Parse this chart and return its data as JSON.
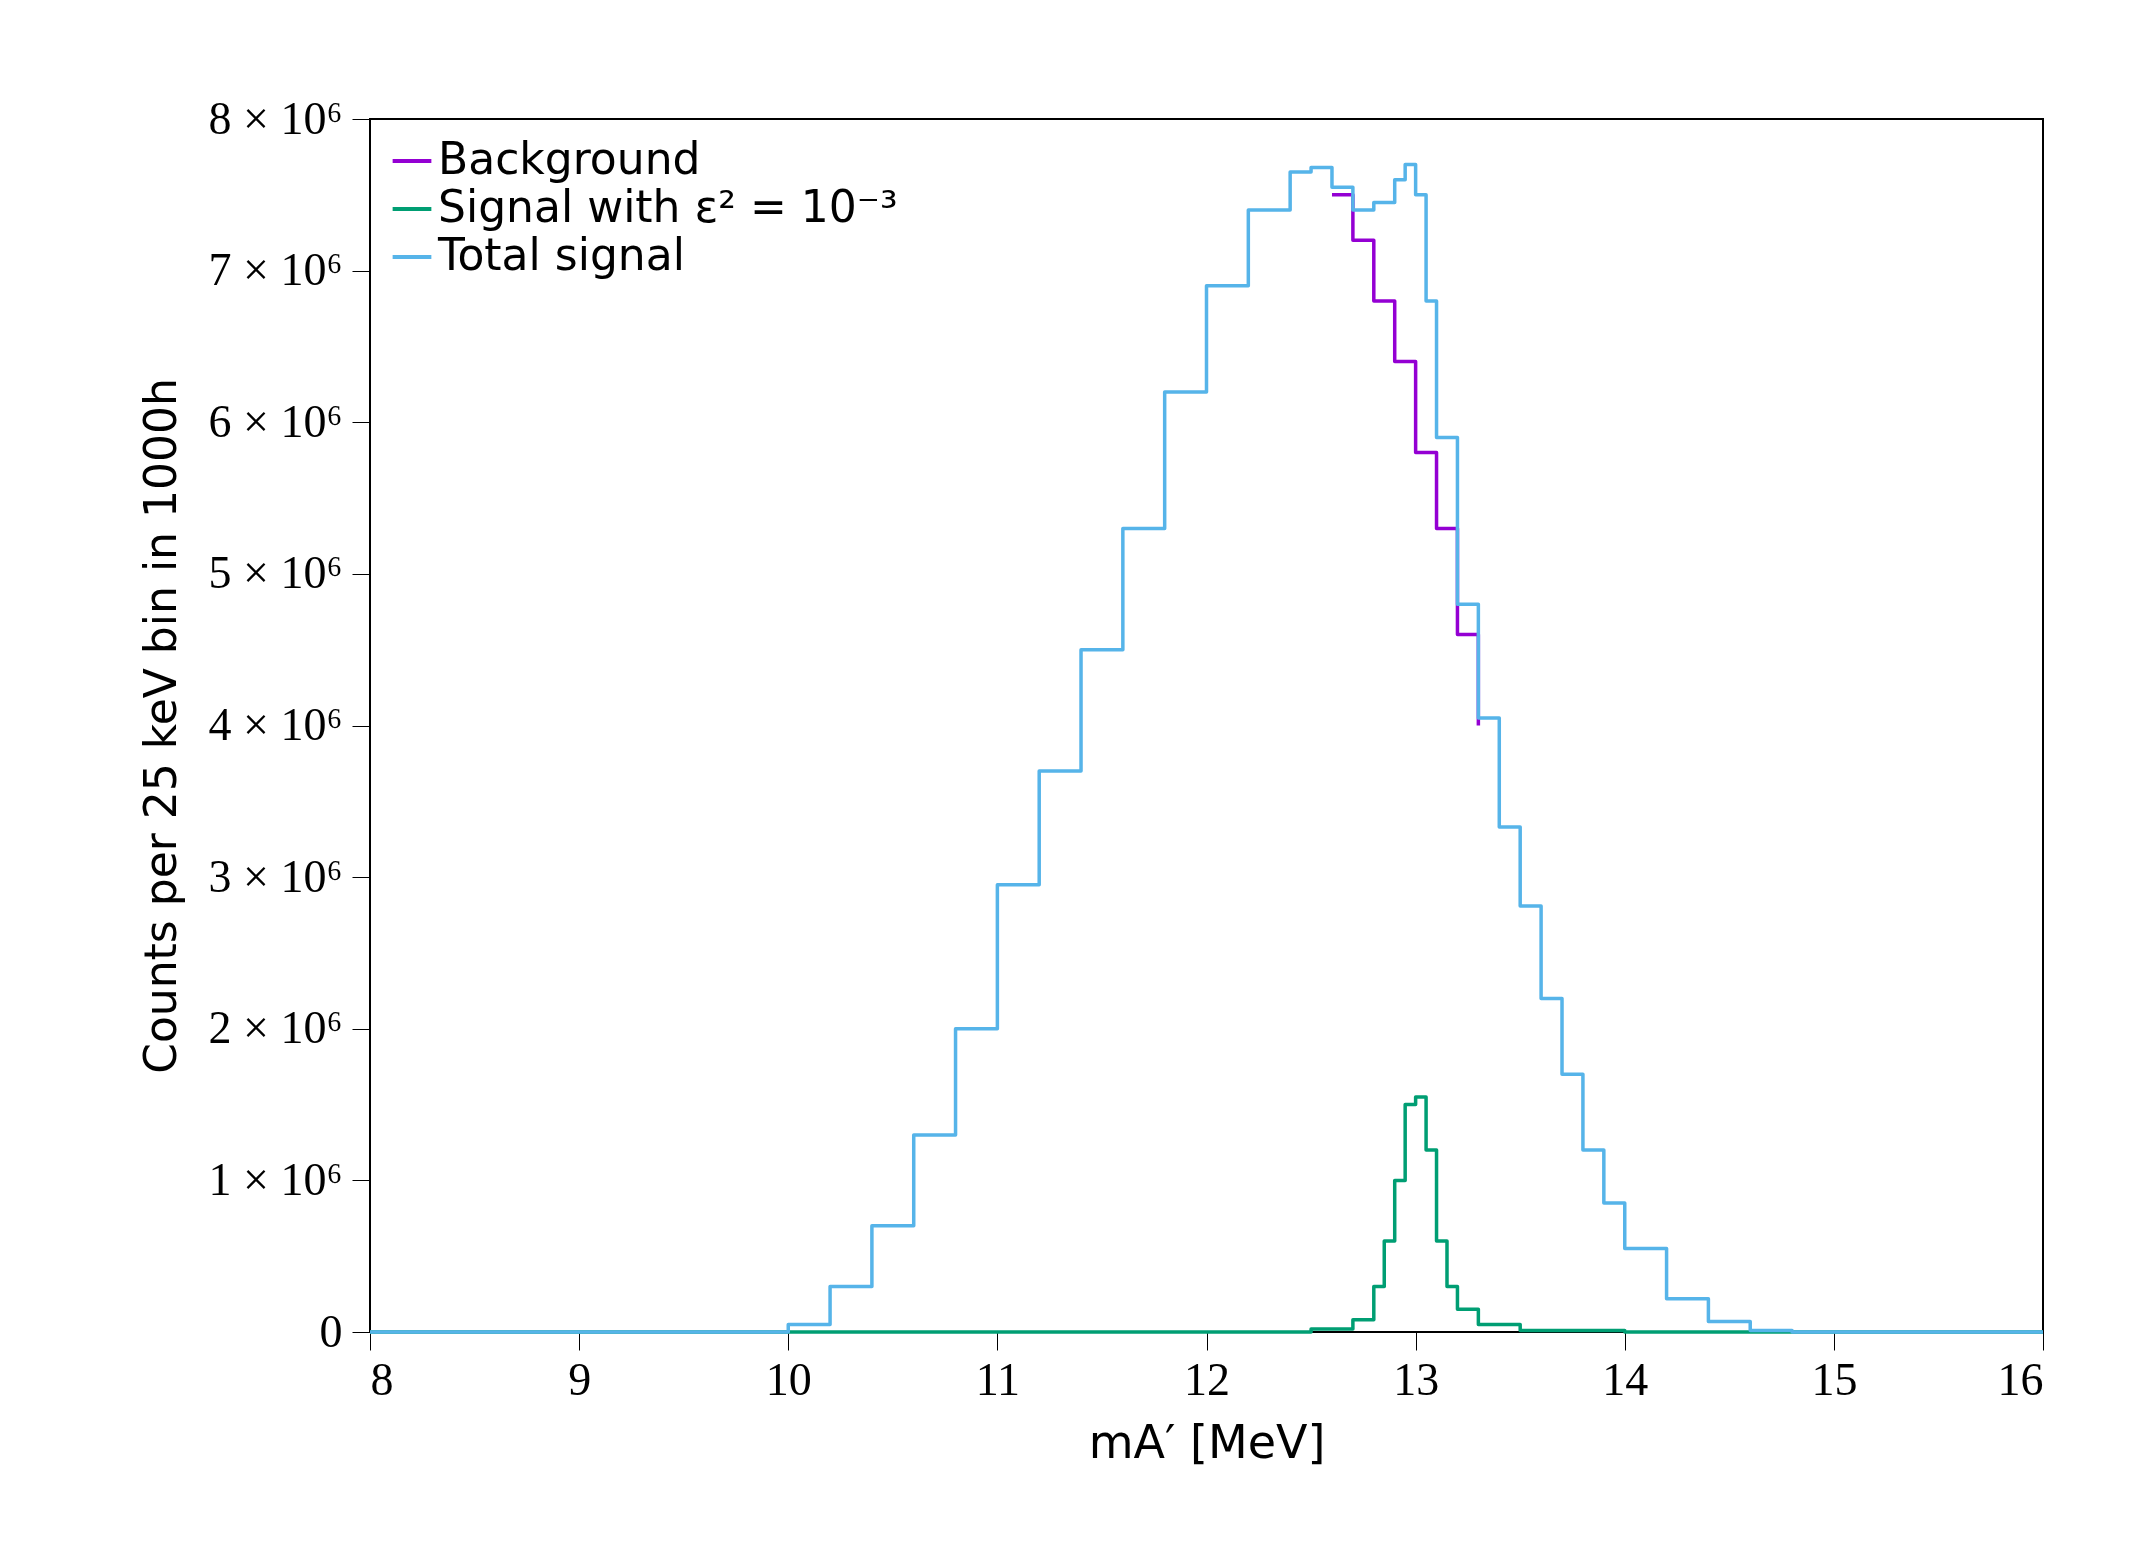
{
  "chart_data": {
    "type": "step",
    "xlabel": "mA′ [MeV]",
    "ylabel": "Counts per 25 keV bin in 1000h",
    "xlim": [
      8,
      16
    ],
    "xticks": [
      8,
      9,
      10,
      11,
      12,
      13,
      14,
      15,
      16
    ],
    "ylim": [
      0,
      8000000
    ],
    "yticks": [
      {
        "value": 0,
        "label": "0"
      },
      {
        "value": 1000000,
        "label": "1 × 10⁶"
      },
      {
        "value": 2000000,
        "label": "2 × 10⁶"
      },
      {
        "value": 3000000,
        "label": "3 × 10⁶"
      },
      {
        "value": 4000000,
        "label": "4 × 10⁶"
      },
      {
        "value": 5000000,
        "label": "5 × 10⁶"
      },
      {
        "value": 6000000,
        "label": "6 × 10⁶"
      },
      {
        "value": 7000000,
        "label": "7 × 10⁶"
      },
      {
        "value": 8000000,
        "label": "8 × 10⁶"
      }
    ],
    "grid": false,
    "legend": "top left",
    "line_style": "solid",
    "series": [
      {
        "name": "Background",
        "color": "#9400d3",
        "x": [
          12.6,
          12.7,
          12.8,
          12.9,
          13.0,
          13.1,
          13.2,
          13.3
        ],
        "values": [
          7500000,
          7200000,
          6800000,
          6400000,
          5800000,
          5300000,
          4600000,
          4000000
        ]
      },
      {
        "name": "Signal with ε² = 10⁻³",
        "color": "#009e73",
        "x": [
          8,
          12.5,
          12.7,
          12.8,
          12.85,
          12.9,
          12.95,
          13.0,
          13.05,
          13.1,
          13.15,
          13.2,
          13.3,
          13.5,
          14.0,
          16
        ],
        "values": [
          0,
          20000,
          80000,
          300000,
          600000,
          1000000,
          1500000,
          1550000,
          1200000,
          600000,
          300000,
          150000,
          50000,
          10000,
          0,
          0
        ]
      },
      {
        "name": "Total signal",
        "color": "#56b4e9",
        "x": [
          8,
          9.8,
          10.0,
          10.2,
          10.4,
          10.6,
          10.8,
          11.0,
          11.2,
          11.4,
          11.6,
          11.8,
          12.0,
          12.2,
          12.4,
          12.5,
          12.6,
          12.7,
          12.8,
          12.9,
          12.95,
          13.0,
          13.05,
          13.1,
          13.2,
          13.3,
          13.4,
          13.5,
          13.6,
          13.7,
          13.8,
          13.9,
          14.0,
          14.2,
          14.4,
          14.6,
          14.8,
          16
        ],
        "values": [
          0,
          0,
          50000,
          300000,
          700000,
          1300000,
          2000000,
          2950000,
          3700000,
          4500000,
          5300000,
          6200000,
          6900000,
          7400000,
          7650000,
          7680000,
          7550000,
          7400000,
          7450000,
          7600000,
          7700000,
          7500000,
          6800000,
          5900000,
          4800000,
          4050000,
          3330000,
          2810000,
          2200000,
          1700000,
          1200000,
          850000,
          550000,
          220000,
          70000,
          10000,
          0,
          0
        ]
      }
    ]
  }
}
